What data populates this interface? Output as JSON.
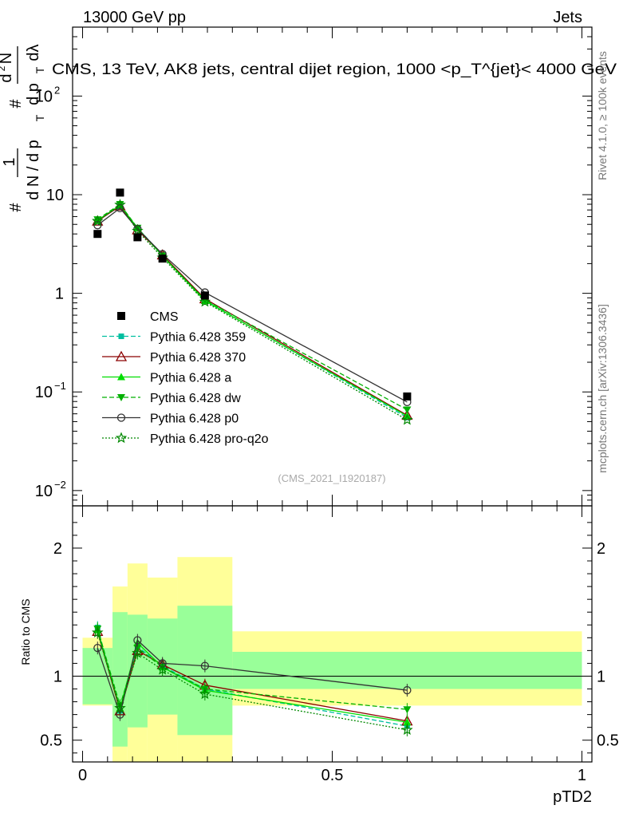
{
  "header": {
    "left": "13000 GeV pp",
    "right": "Jets",
    "subtitle": "(CMS_2021_I1920187)",
    "rivet": "Rivet 4.1.0, ≥ 100k events",
    "mcplots": "mcplots.cern.ch [arXiv:1306.3436]"
  },
  "chart_data": {
    "type": "line",
    "title": "CMS, 13 TeV, AK8 jets, central dijet region, 1000 <p_T^{jet}< 4000 GeV",
    "xlabel": "pTD2",
    "ylabel_top": "1/dN/dpT # d²N/dpT dλ",
    "ylabel_top_parts": {
      "p1": "#",
      "p2": "1",
      "p3": "d N / d p",
      "p4": "T",
      "p5": "#",
      "p6": "d",
      "p7": "2",
      "p8": "N",
      "p9": "d p",
      "p10": "T",
      "p11": "dλ"
    },
    "ylabel_ratio": "Ratio to CMS",
    "xlim": [
      -0.02,
      1.02
    ],
    "ylim_main": [
      0.007,
      500
    ],
    "ylim_ratio": [
      0.33,
      2.33
    ],
    "bin_edges": [
      0.0,
      0.06,
      0.09,
      0.13,
      0.19,
      0.3,
      1.0
    ],
    "x": [
      0.03,
      0.075,
      0.11,
      0.16,
      0.245,
      0.65
    ],
    "main_ticks": [
      {
        "v": 0.01,
        "m": "10",
        "e": "−2"
      },
      {
        "v": 0.1,
        "m": "10",
        "e": "−1"
      },
      {
        "v": 1,
        "m": "1",
        "e": ""
      },
      {
        "v": 10,
        "m": "10",
        "e": ""
      },
      {
        "v": 100,
        "m": "10",
        "e": "2"
      }
    ],
    "ratio_ticks": [
      {
        "v": 0.5,
        "l": "0.5"
      },
      {
        "v": 1,
        "l": "1"
      },
      {
        "v": 2,
        "l": "2"
      }
    ],
    "x_ticks": [
      {
        "v": 0,
        "l": "0"
      },
      {
        "v": 0.5,
        "l": "0.5"
      },
      {
        "v": 1,
        "l": "1"
      }
    ],
    "data": {
      "name": "CMS",
      "values": [
        4.0,
        10.5,
        3.7,
        2.25,
        0.95,
        0.09
      ],
      "color": "#000000"
    },
    "band_inner": [
      [
        0.78,
        1.22
      ],
      [
        0.45,
        1.5
      ],
      [
        0.6,
        1.48
      ],
      [
        0.7,
        1.45
      ],
      [
        0.54,
        1.55
      ],
      [
        0.9,
        1.19
      ]
    ],
    "band_outer": [
      [
        0.77,
        1.3
      ],
      [
        0.33,
        1.7
      ],
      [
        0.33,
        1.88
      ],
      [
        0.33,
        1.77
      ],
      [
        0.33,
        1.93
      ],
      [
        0.77,
        1.35
      ]
    ],
    "series": [
      {
        "name": "Pythia 6.428 359",
        "color": "#00bfa0",
        "dash": "6,3",
        "marker": "square",
        "values": [
          5.5,
          7.6,
          4.6,
          2.45,
          0.85,
          0.055
        ],
        "ratio": [
          1.38,
          0.73,
          1.23,
          1.08,
          0.9,
          0.61
        ]
      },
      {
        "name": "Pythia 6.428 370",
        "color": "#8b0000",
        "dash": "",
        "marker": "triangle-open",
        "values": [
          5.4,
          7.7,
          4.4,
          2.45,
          0.88,
          0.058
        ],
        "ratio": [
          1.35,
          0.73,
          1.2,
          1.09,
          0.93,
          0.65
        ]
      },
      {
        "name": "Pythia 6.428 a",
        "color": "#00dd00",
        "dash": "",
        "marker": "triangle",
        "values": [
          5.5,
          7.8,
          4.6,
          2.4,
          0.84,
          0.057
        ],
        "ratio": [
          1.36,
          0.75,
          1.26,
          1.07,
          0.89,
          0.64
        ]
      },
      {
        "name": "Pythia 6.428 dw",
        "color": "#00b000",
        "dash": "6,3",
        "marker": "triangle-down",
        "values": [
          5.6,
          8.0,
          4.6,
          2.4,
          0.86,
          0.066
        ],
        "ratio": [
          1.37,
          0.77,
          1.22,
          1.07,
          0.9,
          0.74
        ]
      },
      {
        "name": "Pythia 6.428 p0",
        "color": "#333333",
        "dash": "",
        "marker": "circle-open",
        "values": [
          4.9,
          7.3,
          4.5,
          2.5,
          1.02,
          0.079
        ],
        "ratio": [
          1.22,
          0.7,
          1.28,
          1.1,
          1.08,
          0.89
        ]
      },
      {
        "name": "Pythia 6.428 pro-q2o",
        "color": "#008800",
        "dash": "2,2",
        "marker": "star",
        "values": [
          5.4,
          7.9,
          4.3,
          2.3,
          0.82,
          0.052
        ],
        "ratio": [
          1.34,
          0.75,
          1.18,
          1.05,
          0.86,
          0.58
        ]
      }
    ]
  }
}
